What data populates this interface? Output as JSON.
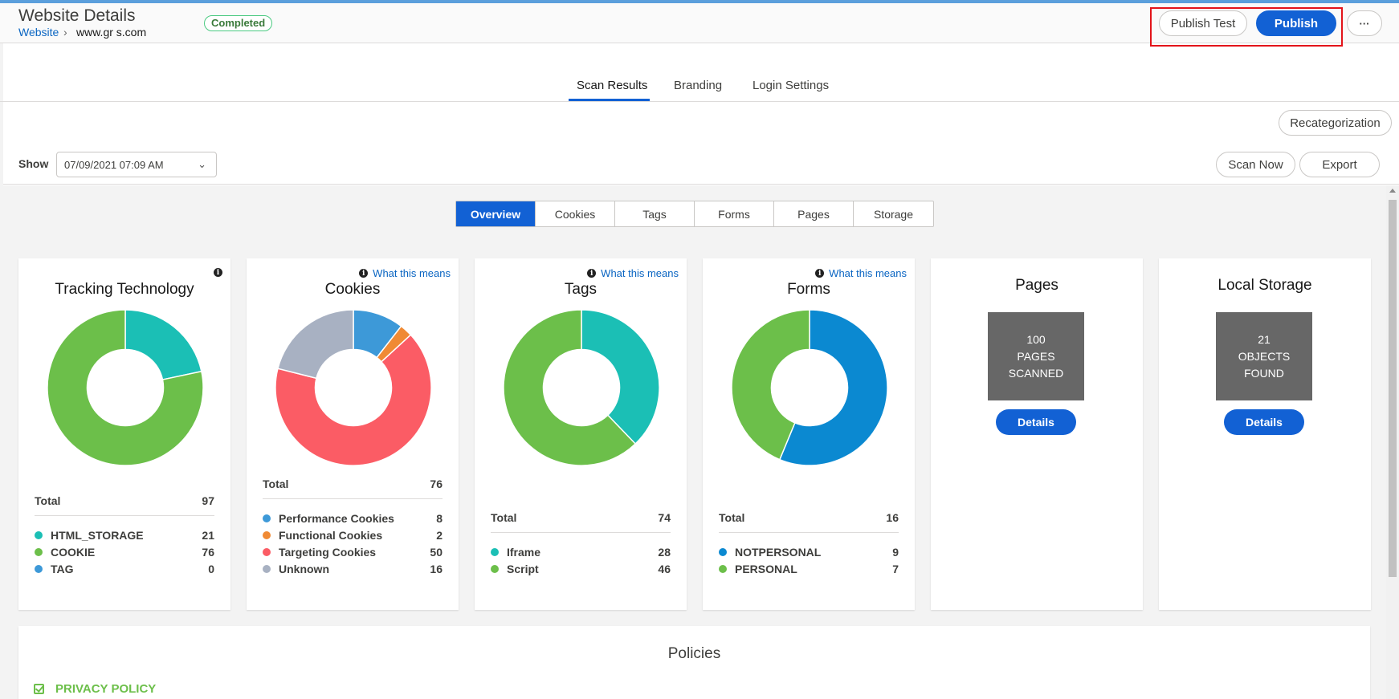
{
  "header": {
    "title": "Website Details",
    "status": "Completed",
    "breadcrumb_parent": "Website",
    "breadcrumb_separator": "›",
    "breadcrumb_current": "www.gr      s.com",
    "publish_test_label": "Publish Test",
    "publish_label": "Publish",
    "more_label": "···"
  },
  "main_tabs": [
    "Scan Results",
    "Branding",
    "Login Settings"
  ],
  "recategorization_label": "Recategorization",
  "filter": {
    "show_label": "Show",
    "date_value": "07/09/2021 07:09 AM",
    "scan_now_label": "Scan Now",
    "export_label": "Export"
  },
  "sub_tabs": [
    "Overview",
    "Cookies",
    "Tags",
    "Forms",
    "Pages",
    "Storage"
  ],
  "what_this_means": "What this means",
  "colors": {
    "teal": "#1bbfb5",
    "green": "#6cbf4a",
    "blue": "#3d99d8",
    "orange": "#f08a34",
    "red": "#fb5c65",
    "gray": "#a8b1c2",
    "dark_blue": "#0b89d1",
    "primary": "#1261d4"
  },
  "cards": {
    "tracking": {
      "title": "Tracking Technology",
      "total_label": "Total",
      "total_value": "97",
      "items": [
        {
          "label": "HTML_STORAGE",
          "value": 21,
          "color": "#1bbfb5"
        },
        {
          "label": "COOKIE",
          "value": 76,
          "color": "#6cbf4a"
        },
        {
          "label": "TAG",
          "value": 0,
          "color": "#3d99d8"
        }
      ]
    },
    "cookies": {
      "title": "Cookies",
      "total_label": "Total",
      "total_value": "76",
      "items": [
        {
          "label": "Performance Cookies",
          "value": 8,
          "color": "#3d99d8"
        },
        {
          "label": "Functional Cookies",
          "value": 2,
          "color": "#f08a34"
        },
        {
          "label": "Targeting Cookies",
          "value": 50,
          "color": "#fb5c65"
        },
        {
          "label": "Unknown",
          "value": 16,
          "color": "#a8b1c2"
        }
      ]
    },
    "tags": {
      "title": "Tags",
      "total_label": "Total",
      "total_value": "74",
      "items": [
        {
          "label": "Iframe",
          "value": 28,
          "color": "#1bbfb5"
        },
        {
          "label": "Script",
          "value": 46,
          "color": "#6cbf4a"
        }
      ]
    },
    "forms": {
      "title": "Forms",
      "total_label": "Total",
      "total_value": "16",
      "items": [
        {
          "label": "NOTPERSONAL",
          "value": 9,
          "color": "#0b89d1"
        },
        {
          "label": "PERSONAL",
          "value": 7,
          "color": "#6cbf4a"
        }
      ]
    },
    "pages": {
      "title": "Pages",
      "line1": "100",
      "line2": "PAGES",
      "line3": "SCANNED",
      "details_label": "Details"
    },
    "storage": {
      "title": "Local Storage",
      "line1": "21",
      "line2": "OBJECTS",
      "line3": "FOUND",
      "details_label": "Details"
    }
  },
  "policies": {
    "title": "Policies",
    "item_label": "PRIVACY POLICY"
  }
}
